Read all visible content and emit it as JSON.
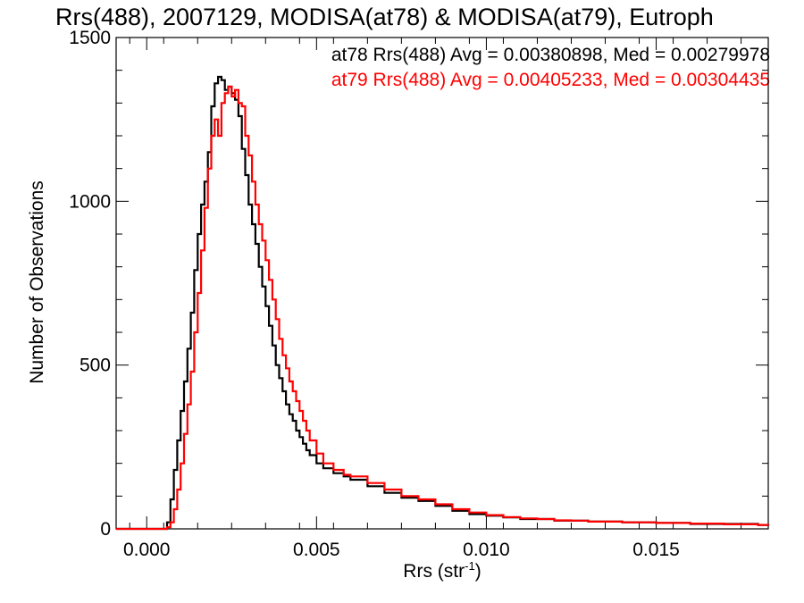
{
  "chart_data": {
    "type": "line",
    "style": "step-histogram",
    "title": "Rrs(488), 2007129, MODISA(at78) & MODISA(at79), Eutroph",
    "xlabel": "Rrs (str",
    "xlabel_superscript": "-1",
    "xlabel_suffix": ")",
    "ylabel": "Number of Observations",
    "xlim": [
      -0.0009,
      0.0183
    ],
    "ylim": [
      0,
      1500
    ],
    "xticks": [
      "0.000",
      "0.005",
      "0.010",
      "0.015"
    ],
    "yticks": [
      "0",
      "500",
      "1000",
      "1500"
    ],
    "grid": false,
    "legend_position": "top-right",
    "legend": [
      {
        "text": "at78 Rrs(488) Avg = 0.00380898, Med = 0.00279978",
        "color": "#000000"
      },
      {
        "text": "at79 Rrs(488) Avg = 0.00405233, Med = 0.00304435",
        "color": "#ff0000"
      }
    ],
    "series": [
      {
        "color": "#000000",
        "points": [
          [
            -0.0009,
            0
          ],
          [
            0.0005,
            0
          ],
          [
            0.0006,
            20
          ],
          [
            0.0007,
            90
          ],
          [
            0.0008,
            180
          ],
          [
            0.0009,
            270
          ],
          [
            0.001,
            360
          ],
          [
            0.0011,
            450
          ],
          [
            0.0012,
            550
          ],
          [
            0.0013,
            660
          ],
          [
            0.0014,
            790
          ],
          [
            0.0015,
            900
          ],
          [
            0.0016,
            990
          ],
          [
            0.0017,
            1060
          ],
          [
            0.0018,
            1150
          ],
          [
            0.0019,
            1290
          ],
          [
            0.002,
            1360
          ],
          [
            0.0021,
            1380
          ],
          [
            0.0022,
            1370
          ],
          [
            0.0023,
            1340
          ],
          [
            0.0024,
            1350
          ],
          [
            0.0025,
            1330
          ],
          [
            0.0026,
            1310
          ],
          [
            0.0027,
            1260
          ],
          [
            0.0028,
            1160
          ],
          [
            0.0029,
            1080
          ],
          [
            0.003,
            990
          ],
          [
            0.0031,
            930
          ],
          [
            0.0032,
            870
          ],
          [
            0.0033,
            800
          ],
          [
            0.0034,
            740
          ],
          [
            0.0035,
            680
          ],
          [
            0.0036,
            620
          ],
          [
            0.0037,
            560
          ],
          [
            0.0038,
            500
          ],
          [
            0.0039,
            460
          ],
          [
            0.004,
            420
          ],
          [
            0.0041,
            380
          ],
          [
            0.0042,
            350
          ],
          [
            0.0043,
            330
          ],
          [
            0.0044,
            300
          ],
          [
            0.0045,
            280
          ],
          [
            0.0046,
            260
          ],
          [
            0.0047,
            240
          ],
          [
            0.0048,
            225
          ],
          [
            0.005,
            200
          ],
          [
            0.0052,
            185
          ],
          [
            0.0055,
            170
          ],
          [
            0.0058,
            160
          ],
          [
            0.006,
            150
          ],
          [
            0.0065,
            130
          ],
          [
            0.007,
            110
          ],
          [
            0.0075,
            95
          ],
          [
            0.008,
            85
          ],
          [
            0.0085,
            70
          ],
          [
            0.009,
            55
          ],
          [
            0.0095,
            45
          ],
          [
            0.01,
            40
          ],
          [
            0.0105,
            35
          ],
          [
            0.011,
            30
          ],
          [
            0.0115,
            30
          ],
          [
            0.012,
            25
          ],
          [
            0.0125,
            25
          ],
          [
            0.013,
            22
          ],
          [
            0.014,
            20
          ],
          [
            0.015,
            18
          ],
          [
            0.016,
            15
          ],
          [
            0.017,
            15
          ],
          [
            0.018,
            12
          ],
          [
            0.0183,
            10
          ]
        ]
      },
      {
        "color": "#ff0000",
        "points": [
          [
            -0.0009,
            0
          ],
          [
            0.0005,
            0
          ],
          [
            0.0006,
            5
          ],
          [
            0.0007,
            20
          ],
          [
            0.0008,
            60
          ],
          [
            0.0009,
            120
          ],
          [
            0.001,
            200
          ],
          [
            0.0011,
            290
          ],
          [
            0.0012,
            380
          ],
          [
            0.0013,
            480
          ],
          [
            0.0014,
            600
          ],
          [
            0.0015,
            720
          ],
          [
            0.0016,
            850
          ],
          [
            0.0017,
            980
          ],
          [
            0.0018,
            1100
          ],
          [
            0.0019,
            1200
          ],
          [
            0.002,
            1250
          ],
          [
            0.0021,
            1200
          ],
          [
            0.0022,
            1300
          ],
          [
            0.0023,
            1330
          ],
          [
            0.0024,
            1350
          ],
          [
            0.0025,
            1320
          ],
          [
            0.0026,
            1340
          ],
          [
            0.0027,
            1300
          ],
          [
            0.0028,
            1290
          ],
          [
            0.0029,
            1200
          ],
          [
            0.003,
            1140
          ],
          [
            0.0031,
            1060
          ],
          [
            0.0032,
            990
          ],
          [
            0.0033,
            930
          ],
          [
            0.0034,
            880
          ],
          [
            0.0035,
            820
          ],
          [
            0.0036,
            760
          ],
          [
            0.0037,
            700
          ],
          [
            0.0038,
            640
          ],
          [
            0.0039,
            580
          ],
          [
            0.004,
            530
          ],
          [
            0.0041,
            490
          ],
          [
            0.0042,
            450
          ],
          [
            0.0043,
            420
          ],
          [
            0.0044,
            390
          ],
          [
            0.0045,
            360
          ],
          [
            0.0046,
            330
          ],
          [
            0.0047,
            300
          ],
          [
            0.0048,
            270
          ],
          [
            0.005,
            230
          ],
          [
            0.0052,
            200
          ],
          [
            0.0055,
            180
          ],
          [
            0.0058,
            165
          ],
          [
            0.006,
            160
          ],
          [
            0.0065,
            140
          ],
          [
            0.007,
            120
          ],
          [
            0.0075,
            100
          ],
          [
            0.008,
            90
          ],
          [
            0.0085,
            75
          ],
          [
            0.009,
            60
          ],
          [
            0.0095,
            50
          ],
          [
            0.01,
            42
          ],
          [
            0.0105,
            36
          ],
          [
            0.011,
            32
          ],
          [
            0.0115,
            30
          ],
          [
            0.012,
            26
          ],
          [
            0.0125,
            25
          ],
          [
            0.013,
            22
          ],
          [
            0.014,
            20
          ],
          [
            0.015,
            18
          ],
          [
            0.016,
            16
          ],
          [
            0.017,
            14
          ],
          [
            0.018,
            12
          ],
          [
            0.0183,
            10
          ]
        ]
      }
    ]
  }
}
